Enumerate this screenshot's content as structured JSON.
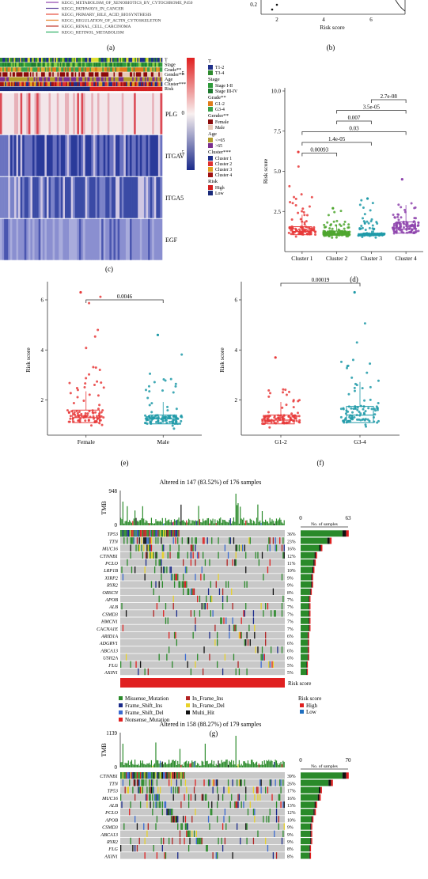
{
  "panel_a": {
    "legend_items": [
      {
        "label": "KEGG_METABOLISM_OF_XENOBIOTICS_BY_CYTOCHROME_P450",
        "color": "#8e44ad"
      },
      {
        "label": "KEGG_PATHWAYS_IN_CANCER",
        "color": "#5a3e9a"
      },
      {
        "label": "KEGG_PRIMARY_BILE_ACID_BIOSYNTHESIS",
        "color": "#e74c3c"
      },
      {
        "label": "KEGG_REGULATION_OF_ACTIN_CYTOSKELETON",
        "color": "#e67e22"
      },
      {
        "label": "KEGG_RENAL_CELL_CARCINOMA",
        "color": "#c0392b"
      },
      {
        "label": "KEGG_RETINOL_METABOLISM",
        "color": "#27ae60"
      }
    ],
    "label": "(a)"
  },
  "panel_b": {
    "xlabel": "Risk score",
    "ytick": "0.2",
    "xticks": [
      "2",
      "4",
      "6"
    ],
    "label": "(b)"
  },
  "panel_c": {
    "label": "(c)",
    "annotation_rows": [
      "T",
      "Stage",
      "Grade**",
      "Gender**",
      "Age",
      "Cluster***",
      "Risk"
    ],
    "genes": [
      "PLG",
      "ITGAV",
      "ITGA5",
      "EGF"
    ],
    "colorbar": {
      "ticks": [
        "5",
        "0",
        "-5"
      ]
    },
    "legend": [
      {
        "title": "T",
        "items": [
          {
            "label": "T1-2",
            "color": "#1f2f8a"
          },
          {
            "label": "T3-4",
            "color": "#2e8b2e"
          }
        ]
      },
      {
        "title": "Stage",
        "items": [
          {
            "label": "Stage I-II",
            "color": "#2e9a3a"
          },
          {
            "label": "Stage III-IV",
            "color": "#1e7a2e"
          }
        ]
      },
      {
        "title": "Grade**",
        "items": [
          {
            "label": "G1-2",
            "color": "#e07b1a"
          },
          {
            "label": "G3-4",
            "color": "#3aa14a"
          }
        ]
      },
      {
        "title": "Gender**",
        "items": [
          {
            "label": "Female",
            "color": "#8b0a0a"
          },
          {
            "label": "Male",
            "color": "#e8c9b8"
          }
        ]
      },
      {
        "title": "Age",
        "items": [
          {
            "label": "<=65",
            "color": "#b39c2a"
          },
          {
            "label": ">65",
            "color": "#7a2e8e"
          }
        ]
      },
      {
        "title": "Cluster***",
        "items": [
          {
            "label": "Cluster 1",
            "color": "#1f2f8a"
          },
          {
            "label": "Cluster 2",
            "color": "#e03030"
          },
          {
            "label": "Cluster 3",
            "color": "#e0a020"
          },
          {
            "label": "Cluster 4",
            "color": "#a01010"
          }
        ]
      },
      {
        "title": "Risk",
        "items": [
          {
            "label": "High",
            "color": "#d42020"
          },
          {
            "label": "Low",
            "color": "#1a2a7a"
          }
        ]
      }
    ]
  },
  "chart_data": [
    {
      "type": "scatter",
      "panel": "d",
      "ylabel": "Risk score",
      "categories": [
        "Cluster 1",
        "Cluster 2",
        "Cluster 3",
        "Cluster 4"
      ],
      "ylim": [
        0,
        10
      ],
      "yticks": [
        "2.5",
        "5.0",
        "7.5",
        "10.0"
      ],
      "colors": [
        "#e83a3a",
        "#4ea62e",
        "#1f9aa8",
        "#8e44ad"
      ],
      "medians": [
        1.25,
        1.12,
        1.05,
        1.4
      ],
      "q1": [
        1.05,
        1.02,
        1.0,
        1.15
      ],
      "q3": [
        1.55,
        1.28,
        1.12,
        1.85
      ],
      "max_points": [
        6.2,
        2.7,
        3.3,
        4.5
      ],
      "comparisons": [
        {
          "pair": [
            1,
            2
          ],
          "p": "0.00093"
        },
        {
          "pair": [
            1,
            3
          ],
          "p": "1.4e-05"
        },
        {
          "pair": [
            1,
            4
          ],
          "p": "0.03"
        },
        {
          "pair": [
            2,
            3
          ],
          "p": "0.007"
        },
        {
          "pair": [
            2,
            4
          ],
          "p": "3.5e-05"
        },
        {
          "pair": [
            3,
            4
          ],
          "p": "2.7e-08"
        }
      ],
      "label": "(d)"
    },
    {
      "type": "scatter",
      "panel": "e",
      "ylabel": "Risk score",
      "categories": [
        "Female",
        "Male"
      ],
      "ylim": [
        0.6,
        6.6
      ],
      "yticks": [
        "2",
        "4",
        "6"
      ],
      "colors": [
        "#e83a3a",
        "#1f9aa8"
      ],
      "medians": [
        1.3,
        1.25
      ],
      "q1": [
        1.1,
        1.05
      ],
      "q3": [
        1.6,
        1.4
      ],
      "max_points": [
        6.3,
        4.6
      ],
      "comparisons": [
        {
          "pair": [
            1,
            2
          ],
          "p": "0.0046"
        }
      ],
      "label": "(e)"
    },
    {
      "type": "scatter",
      "panel": "f",
      "ylabel": "Risk score",
      "categories": [
        "G1-2",
        "G3-4"
      ],
      "ylim": [
        0.6,
        6.6
      ],
      "yticks": [
        "2",
        "4",
        "6"
      ],
      "colors": [
        "#e83a3a",
        "#1f9aa8"
      ],
      "medians": [
        1.2,
        1.4
      ],
      "q1": [
        1.05,
        1.1
      ],
      "q3": [
        1.4,
        1.75
      ],
      "max_points": [
        3.7,
        6.3
      ],
      "comparisons": [
        {
          "pair": [
            1,
            2
          ],
          "p": "0.00019"
        }
      ],
      "label": "(f)"
    },
    {
      "type": "heatmap",
      "panel": "g",
      "title": "Altered in 147 (83.52%) of 176 samples",
      "tmb_label": "TMB",
      "tmb_max": "948",
      "tmb_zero": "0",
      "samples_axis": {
        "min": "0",
        "max": "63",
        "label": "No. of samples"
      },
      "genes": [
        "TP53",
        "TTN",
        "MUC16",
        "CTNNB1",
        "PCLO",
        "LRP1B",
        "XIRP2",
        "RYR2",
        "OBSCN",
        "APOB",
        "ALB",
        "CSMD3",
        "HMCN1",
        "CACNA1E",
        "ARID1A",
        "ADGRV1",
        "ABCA13",
        "USH2A",
        "FLG",
        "AXIN1"
      ],
      "percents": [
        "36%",
        "23%",
        "16%",
        "12%",
        "11%",
        "10%",
        "9%",
        "9%",
        "8%",
        "7%",
        "7%",
        "7%",
        "7%",
        "7%",
        "6%",
        "6%",
        "6%",
        "6%",
        "5%",
        "5%"
      ],
      "values": [
        36,
        23,
        16,
        12,
        11,
        10,
        9,
        9,
        8,
        7,
        7,
        7,
        7,
        7,
        6,
        6,
        6,
        6,
        5,
        5
      ],
      "risk_bar_label": "Risk score",
      "legend": [
        {
          "label": "Missense_Mutation",
          "color": "#2a8a2a"
        },
        {
          "label": "In_Frame_Ins",
          "color": "#b22222"
        },
        {
          "label": "Frame_Shift_Ins",
          "color": "#1a2a8a"
        },
        {
          "label": "In_Frame_Del",
          "color": "#e8d22a"
        },
        {
          "label": "Frame_Shift_Del",
          "color": "#3a6ad0"
        },
        {
          "label": "Multi_Hit",
          "color": "#111111"
        },
        {
          "label": "Nonsense_Mutation",
          "color": "#e02020"
        }
      ],
      "risk_legend": {
        "title": "Risk score",
        "items": [
          {
            "label": "High",
            "color": "#e02020"
          },
          {
            "label": "Low",
            "color": "#1f6fc0"
          }
        ]
      },
      "label": "(g)"
    },
    {
      "type": "heatmap",
      "panel": "h",
      "title": "Altered in 158 (88.27%) of 179 samples",
      "tmb_label": "TMB",
      "tmb_max": "1139",
      "tmb_zero": "0",
      "samples_axis": {
        "min": "0",
        "max": "70",
        "label": "No. of samples"
      },
      "genes": [
        "CTNNB1",
        "TTN",
        "TP53",
        "MUC16",
        "ALB",
        "PCLO",
        "APOB",
        "CSMD3",
        "ABCA13",
        "RYR2",
        "FLG",
        "AXIN1"
      ],
      "percents": [
        "39%",
        "26%",
        "17%",
        "16%",
        "13%",
        "12%",
        "10%",
        "9%",
        "9%",
        "9%",
        "8%",
        "8%"
      ],
      "values": [
        39,
        26,
        17,
        16,
        13,
        12,
        10,
        9,
        9,
        9,
        8,
        8
      ]
    }
  ]
}
